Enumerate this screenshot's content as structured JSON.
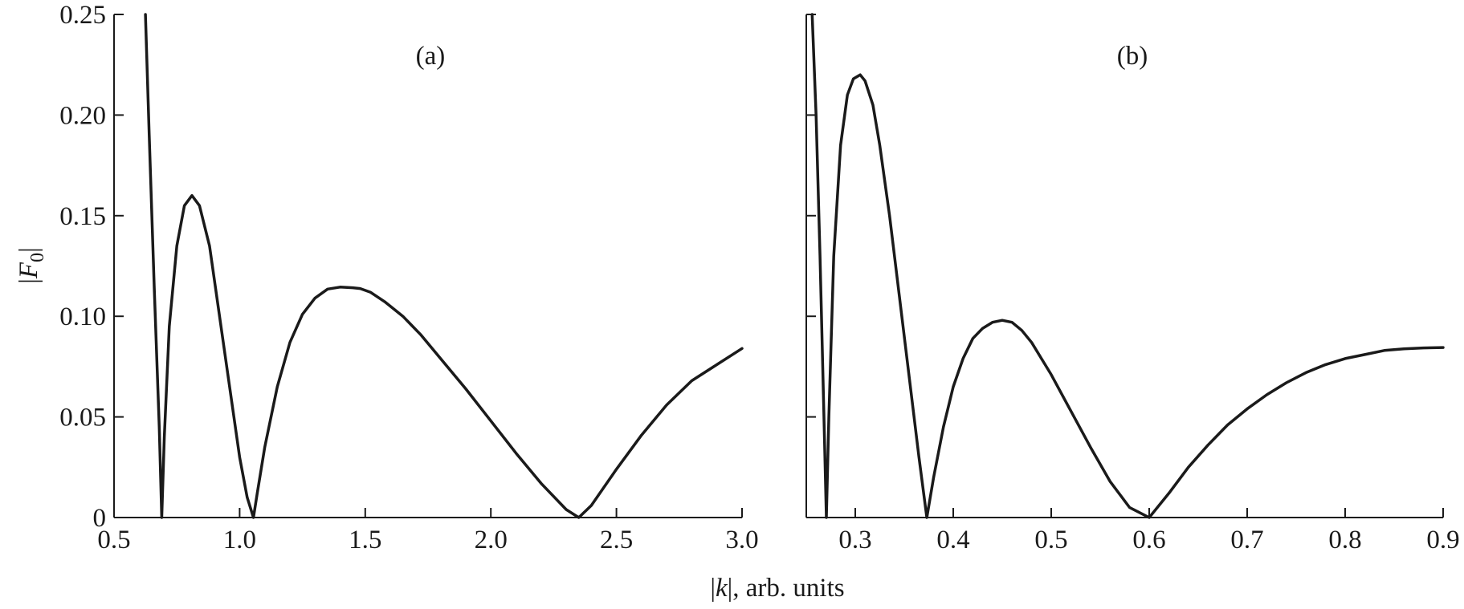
{
  "chart_data": [
    {
      "type": "line",
      "panel_label": "(a)",
      "xlim": [
        0.5,
        3.0
      ],
      "ylim": [
        0,
        0.25
      ],
      "xticks": [
        "0.5",
        "1.0",
        "1.5",
        "2.0",
        "2.5",
        "3.0"
      ],
      "yticks": [
        "0",
        "0.05",
        "0.10",
        "0.15",
        "0.20",
        "0.25"
      ],
      "ylabel_prefix": "|",
      "ylabel_var": "F",
      "ylabel_sub": "0",
      "ylabel_suffix": "|",
      "grid": false,
      "series": [
        {
          "x": [
            0.625,
            0.64,
            0.66,
            0.68,
            0.69,
            0.7,
            0.72,
            0.75,
            0.78,
            0.81,
            0.84,
            0.88,
            0.92,
            0.96,
            1.0,
            1.03,
            1.055,
            1.07,
            1.1,
            1.15,
            1.2,
            1.25,
            1.3,
            1.35,
            1.4,
            1.45,
            1.48,
            1.52,
            1.58,
            1.65,
            1.72,
            1.8,
            1.9,
            2.0,
            2.1,
            2.2,
            2.3,
            2.35,
            2.4,
            2.5,
            2.6,
            2.7,
            2.8,
            2.9,
            3.0
          ],
          "y": [
            0.25,
            0.19,
            0.115,
            0.045,
            0.0,
            0.04,
            0.095,
            0.135,
            0.155,
            0.16,
            0.155,
            0.135,
            0.1,
            0.065,
            0.03,
            0.01,
            0.0,
            0.012,
            0.035,
            0.065,
            0.087,
            0.101,
            0.109,
            0.1135,
            0.1145,
            0.1142,
            0.1138,
            0.112,
            0.107,
            0.1,
            0.091,
            0.079,
            0.064,
            0.048,
            0.032,
            0.017,
            0.004,
            0.0,
            0.006,
            0.024,
            0.041,
            0.056,
            0.068,
            0.076,
            0.084
          ]
        }
      ]
    },
    {
      "type": "line",
      "panel_label": "(b)",
      "xlim": [
        0.25,
        0.9
      ],
      "ylim": [
        0,
        0.25
      ],
      "xticks": [
        "0.3",
        "0.4",
        "0.5",
        "0.6",
        "0.7",
        "0.8",
        "0.9"
      ],
      "grid": false,
      "series": [
        {
          "x": [
            0.256,
            0.26,
            0.264,
            0.268,
            0.2705,
            0.273,
            0.278,
            0.285,
            0.292,
            0.298,
            0.305,
            0.31,
            0.318,
            0.325,
            0.335,
            0.345,
            0.355,
            0.365,
            0.373,
            0.38,
            0.39,
            0.4,
            0.41,
            0.42,
            0.43,
            0.44,
            0.45,
            0.46,
            0.47,
            0.48,
            0.49,
            0.5,
            0.52,
            0.54,
            0.56,
            0.58,
            0.6,
            0.62,
            0.64,
            0.66,
            0.68,
            0.7,
            0.72,
            0.74,
            0.76,
            0.78,
            0.8,
            0.82,
            0.84,
            0.86,
            0.88,
            0.9
          ],
          "y": [
            0.25,
            0.2,
            0.13,
            0.05,
            0.0,
            0.05,
            0.13,
            0.185,
            0.21,
            0.218,
            0.22,
            0.217,
            0.205,
            0.185,
            0.15,
            0.11,
            0.07,
            0.03,
            0.0,
            0.02,
            0.045,
            0.065,
            0.079,
            0.089,
            0.094,
            0.097,
            0.098,
            0.097,
            0.093,
            0.087,
            0.079,
            0.071,
            0.053,
            0.035,
            0.018,
            0.005,
            0.0,
            0.012,
            0.025,
            0.036,
            0.046,
            0.054,
            0.061,
            0.067,
            0.072,
            0.076,
            0.079,
            0.081,
            0.083,
            0.0838,
            0.0843,
            0.0845
          ]
        }
      ]
    }
  ],
  "xlabel_prefix": "|",
  "xlabel_var": "k",
  "xlabel_suffix": "|, arb. units"
}
